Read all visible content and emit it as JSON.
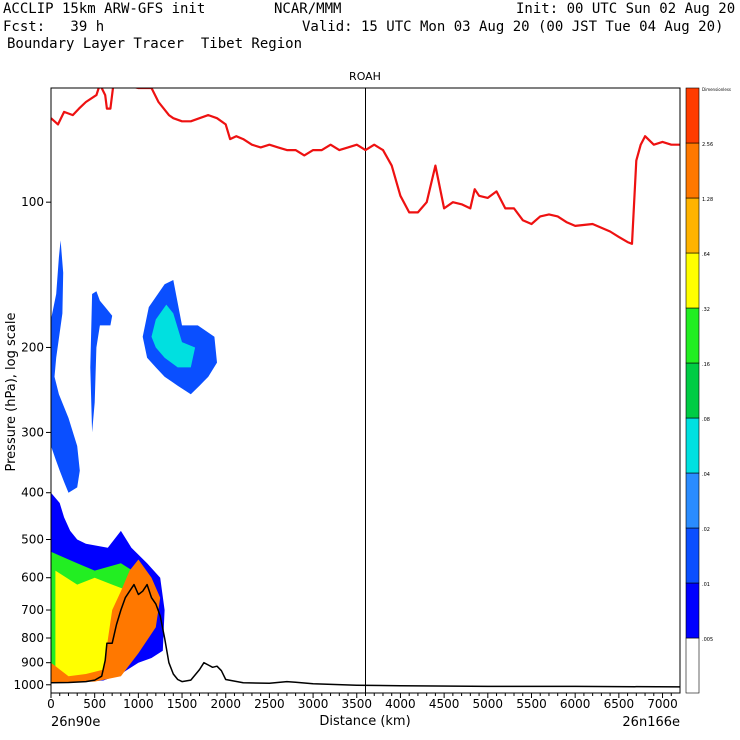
{
  "header": {
    "model": "ACCLIP 15km ARW-GFS init",
    "org": "NCAR/MMM",
    "init": "Init: 00 UTC Sun 02 Aug 20",
    "fcst": "Fcst:   39 h",
    "valid": "Valid: 15 UTC Mon 03 Aug 20 (00 JST Tue 04 Aug 20)",
    "product": "Boundary Layer Tracer  Tibet Region"
  },
  "chart_data": {
    "type": "contour cross-section",
    "title": "ROAH",
    "xlabel": "Distance (km)",
    "ylabel": "Pressure (hPa), log scale",
    "x_endpoints": [
      "26n90e",
      "26n166e"
    ],
    "xlim": [
      0,
      7200
    ],
    "ylim": [
      1040,
      58
    ],
    "x_ticks": [
      0,
      500,
      1000,
      1500,
      2000,
      2500,
      3000,
      3500,
      4000,
      4500,
      5000,
      5500,
      6000,
      6500,
      7000
    ],
    "y_ticks": [
      100,
      200,
      300,
      400,
      500,
      600,
      700,
      800,
      900,
      1000
    ],
    "marker_line_x": 3600,
    "colorbar": {
      "labels": [
        ".005",
        ".01",
        ".02",
        ".04",
        ".08",
        ".16",
        ".32",
        ".64",
        "1.28",
        "2.56",
        "Dimensionless"
      ],
      "colors": [
        "#ffffff",
        "#0000ff",
        "#0a4fff",
        "#2a8cff",
        "#00e0e0",
        "#00cc44",
        "#22ee22",
        "#ffff00",
        "#ffb300",
        "#ff7800",
        "#ff3c00"
      ]
    },
    "tropopause_line": {
      "color": "#ee1111",
      "points": [
        [
          0,
          67
        ],
        [
          80,
          69
        ],
        [
          150,
          65
        ],
        [
          250,
          66
        ],
        [
          320,
          64
        ],
        [
          400,
          62
        ],
        [
          520,
          60
        ],
        [
          560,
          57
        ],
        [
          620,
          60
        ],
        [
          640,
          64
        ],
        [
          680,
          64
        ],
        [
          720,
          56
        ],
        [
          750,
          55
        ],
        [
          800,
          57
        ],
        [
          1000,
          58
        ],
        [
          1150,
          58
        ],
        [
          1230,
          62
        ],
        [
          1350,
          66
        ],
        [
          1400,
          67
        ],
        [
          1500,
          68
        ],
        [
          1600,
          68
        ],
        [
          1700,
          67
        ],
        [
          1800,
          66
        ],
        [
          1900,
          67
        ],
        [
          2000,
          69
        ],
        [
          2050,
          74
        ],
        [
          2120,
          73
        ],
        [
          2200,
          74
        ],
        [
          2300,
          76
        ],
        [
          2400,
          77
        ],
        [
          2500,
          76
        ],
        [
          2600,
          77
        ],
        [
          2700,
          78
        ],
        [
          2800,
          78
        ],
        [
          2900,
          80
        ],
        [
          3000,
          78
        ],
        [
          3100,
          78
        ],
        [
          3200,
          76
        ],
        [
          3300,
          78
        ],
        [
          3400,
          77
        ],
        [
          3500,
          76
        ],
        [
          3600,
          78
        ],
        [
          3700,
          76
        ],
        [
          3800,
          78
        ],
        [
          3900,
          84
        ],
        [
          4000,
          97
        ],
        [
          4100,
          105
        ],
        [
          4200,
          105
        ],
        [
          4300,
          100
        ],
        [
          4400,
          84
        ],
        [
          4500,
          103
        ],
        [
          4600,
          100
        ],
        [
          4700,
          101
        ],
        [
          4800,
          103
        ],
        [
          4850,
          94
        ],
        [
          4900,
          97
        ],
        [
          5000,
          98
        ],
        [
          5100,
          95
        ],
        [
          5200,
          103
        ],
        [
          5300,
          103
        ],
        [
          5400,
          109
        ],
        [
          5500,
          111
        ],
        [
          5600,
          107
        ],
        [
          5700,
          106
        ],
        [
          5800,
          107
        ],
        [
          5900,
          110
        ],
        [
          6000,
          112
        ],
        [
          6200,
          111
        ],
        [
          6400,
          115
        ],
        [
          6500,
          118
        ],
        [
          6600,
          121
        ],
        [
          6650,
          122
        ],
        [
          6700,
          82
        ],
        [
          6750,
          76
        ],
        [
          6800,
          73
        ],
        [
          6900,
          76
        ],
        [
          7000,
          75
        ],
        [
          7100,
          76
        ],
        [
          7200,
          76
        ]
      ]
    },
    "terrain_line": {
      "color": "#000000",
      "points": [
        [
          0,
          990
        ],
        [
          200,
          989
        ],
        [
          400,
          985
        ],
        [
          500,
          978
        ],
        [
          580,
          960
        ],
        [
          620,
          890
        ],
        [
          640,
          820
        ],
        [
          700,
          820
        ],
        [
          750,
          750
        ],
        [
          800,
          700
        ],
        [
          850,
          660
        ],
        [
          900,
          640
        ],
        [
          950,
          620
        ],
        [
          1000,
          650
        ],
        [
          1050,
          640
        ],
        [
          1100,
          620
        ],
        [
          1150,
          660
        ],
        [
          1200,
          680
        ],
        [
          1250,
          720
        ],
        [
          1300,
          800
        ],
        [
          1350,
          900
        ],
        [
          1400,
          950
        ],
        [
          1450,
          975
        ],
        [
          1500,
          985
        ],
        [
          1600,
          978
        ],
        [
          1700,
          930
        ],
        [
          1750,
          900
        ],
        [
          1800,
          910
        ],
        [
          1850,
          920
        ],
        [
          1900,
          915
        ],
        [
          1950,
          935
        ],
        [
          2000,
          975
        ],
        [
          2200,
          990
        ],
        [
          2500,
          993
        ],
        [
          2700,
          985
        ],
        [
          2800,
          988
        ],
        [
          3000,
          995
        ],
        [
          3500,
          1002
        ],
        [
          4000,
          1005
        ],
        [
          5000,
          1008
        ],
        [
          6000,
          1008
        ],
        [
          7200,
          1010
        ]
      ]
    },
    "tracer_regions": [
      {
        "name": "left-edge",
        "color": "#0a4fff",
        "points": [
          [
            0,
            175
          ],
          [
            60,
            155
          ],
          [
            90,
            130
          ],
          [
            110,
            120
          ],
          [
            140,
            140
          ],
          [
            130,
            170
          ],
          [
            60,
            210
          ],
          [
            40,
            230
          ],
          [
            90,
            250
          ],
          [
            200,
            280
          ],
          [
            300,
            320
          ],
          [
            330,
            360
          ],
          [
            300,
            390
          ],
          [
            200,
            400
          ],
          [
            150,
            380
          ],
          [
            100,
            360
          ],
          [
            50,
            340
          ],
          [
            0,
            320
          ]
        ]
      },
      {
        "name": "thin-column",
        "color": "#0a4fff",
        "points": [
          [
            470,
            155
          ],
          [
            520,
            153
          ],
          [
            560,
            160
          ],
          [
            620,
            165
          ],
          [
            700,
            172
          ],
          [
            680,
            180
          ],
          [
            560,
            180
          ],
          [
            520,
            200
          ],
          [
            500,
            260
          ],
          [
            470,
            300
          ],
          [
            450,
            220
          ]
        ]
      },
      {
        "name": "upper-blob",
        "color": "#0a4fff",
        "points": [
          [
            1120,
            165
          ],
          [
            1300,
            148
          ],
          [
            1400,
            145
          ],
          [
            1500,
            180
          ],
          [
            1680,
            180
          ],
          [
            1870,
            190
          ],
          [
            1900,
            215
          ],
          [
            1800,
            230
          ],
          [
            1700,
            240
          ],
          [
            1600,
            250
          ],
          [
            1450,
            240
          ],
          [
            1300,
            230
          ],
          [
            1200,
            220
          ],
          [
            1100,
            210
          ],
          [
            1050,
            190
          ]
        ]
      },
      {
        "name": "upper-blob-inner",
        "color": "#00e0e0",
        "points": [
          [
            1200,
            175
          ],
          [
            1320,
            163
          ],
          [
            1400,
            170
          ],
          [
            1500,
            195
          ],
          [
            1650,
            200
          ],
          [
            1600,
            220
          ],
          [
            1450,
            220
          ],
          [
            1300,
            210
          ],
          [
            1200,
            200
          ],
          [
            1150,
            190
          ]
        ]
      },
      {
        "name": "lower-plume",
        "color": "#0000ff",
        "points": [
          [
            0,
            400
          ],
          [
            100,
            420
          ],
          [
            150,
            450
          ],
          [
            220,
            480
          ],
          [
            300,
            500
          ],
          [
            400,
            510
          ],
          [
            650,
            520
          ],
          [
            800,
            480
          ],
          [
            920,
            520
          ],
          [
            1100,
            560
          ],
          [
            1250,
            600
          ],
          [
            1300,
            700
          ],
          [
            1280,
            850
          ],
          [
            1150,
            880
          ],
          [
            1000,
            900
          ],
          [
            800,
            950
          ],
          [
            600,
            980
          ],
          [
            400,
            985
          ],
          [
            200,
            985
          ],
          [
            0,
            985
          ]
        ]
      },
      {
        "name": "lower-plume-mid",
        "color": "#22ee22",
        "points": [
          [
            0,
            530
          ],
          [
            100,
            540
          ],
          [
            300,
            560
          ],
          [
            500,
            580
          ],
          [
            800,
            560
          ],
          [
            1000,
            590
          ],
          [
            1150,
            640
          ],
          [
            1200,
            700
          ],
          [
            1100,
            760
          ],
          [
            900,
            860
          ],
          [
            700,
            940
          ],
          [
            400,
            980
          ],
          [
            0,
            980
          ]
        ]
      },
      {
        "name": "lower-plume-core",
        "color": "#ffff00",
        "points": [
          [
            50,
            580
          ],
          [
            300,
            620
          ],
          [
            500,
            600
          ],
          [
            700,
            620
          ],
          [
            900,
            640
          ],
          [
            1100,
            680
          ],
          [
            1000,
            760
          ],
          [
            800,
            860
          ],
          [
            600,
            960
          ],
          [
            300,
            975
          ],
          [
            50,
            960
          ]
        ]
      },
      {
        "name": "lower-plume-hot",
        "color": "#ff7800",
        "points": [
          [
            0,
            900
          ],
          [
            200,
            960
          ],
          [
            400,
            950
          ],
          [
            600,
            930
          ],
          [
            700,
            700
          ],
          [
            800,
            640
          ],
          [
            900,
            580
          ],
          [
            1000,
            550
          ],
          [
            1150,
            600
          ],
          [
            1250,
            660
          ],
          [
            1200,
            760
          ],
          [
            1000,
            860
          ],
          [
            800,
            960
          ],
          [
            500,
            985
          ],
          [
            0,
            988
          ]
        ]
      }
    ]
  }
}
